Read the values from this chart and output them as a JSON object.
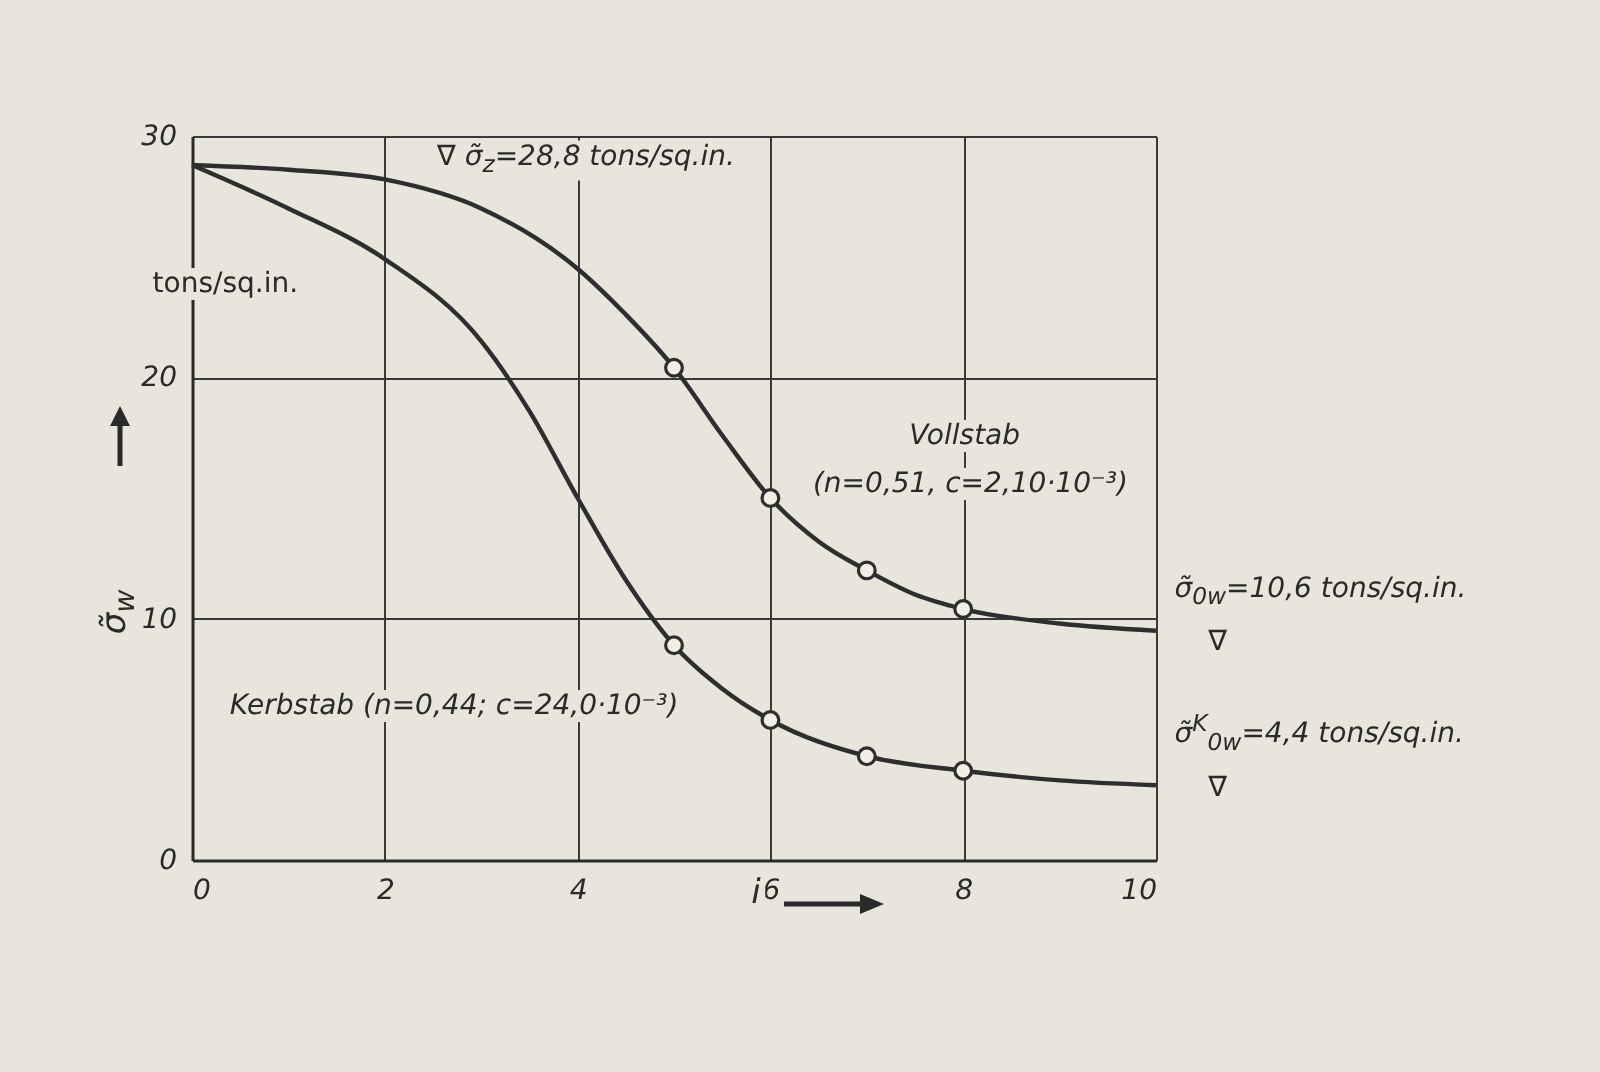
{
  "chart_data": {
    "type": "line",
    "ylabel": "σ̃$_{w}$",
    "xlabel": "i",
    "xlim": [
      0,
      10
    ],
    "ylim": [
      0,
      30
    ],
    "xticks": [
      0,
      2,
      4,
      6,
      8,
      10
    ],
    "yticks": [
      0,
      10,
      20,
      30
    ],
    "grid": true,
    "line_style": "solid",
    "series": [
      {
        "type": "line",
        "color": "#2e2e2e",
        "x": [
          0,
          1,
          2,
          3,
          4,
          4.5,
          5,
          5.5,
          6,
          6.5,
          7,
          7.5,
          8,
          9,
          10
        ],
        "values": [
          28.8,
          28.6,
          28.2,
          27.0,
          24.5,
          22.6,
          20.4,
          17.6,
          15.0,
          13.2,
          12.0,
          11.0,
          10.4,
          9.8,
          9.5
        ]
      },
      {
        "type": "line",
        "color": "#2e2e2e",
        "x": [
          0,
          1,
          2,
          3,
          3.5,
          4,
          4.5,
          5,
          5.5,
          6,
          7,
          8,
          9,
          10
        ],
        "values": [
          28.8,
          27.0,
          24.9,
          21.5,
          18.6,
          15.0,
          11.6,
          8.9,
          7.1,
          5.8,
          4.3,
          3.7,
          3.3,
          3.1
        ]
      },
      {
        "type": "scatter",
        "marker": "circle",
        "color": "#2e2e2e",
        "x": [
          5,
          6,
          7,
          8
        ],
        "values": [
          20.4,
          15.0,
          12.0,
          10.4
        ]
      },
      {
        "type": "scatter",
        "marker": "circle",
        "color": "#2e2e2e",
        "x": [
          5,
          6,
          7,
          8
        ],
        "values": [
          8.9,
          5.8,
          4.3,
          3.7
        ]
      }
    ],
    "annotations": [
      "∇ σ̃$_{z}$=28,8 tons/sq.in.",
      "tons/sq.in.",
      "Vollstab",
      "(n=0,51, c=2,10·10⁻³)",
      "Kerbstab (n=0,44; c=24,0·10⁻³)",
      "σ̃$_{0w}$=10,6 tons/sq.in.",
      "∇",
      "σ̃$^{K}$$_{0w}$=4,4 tons/sq.in.",
      "∇"
    ]
  }
}
